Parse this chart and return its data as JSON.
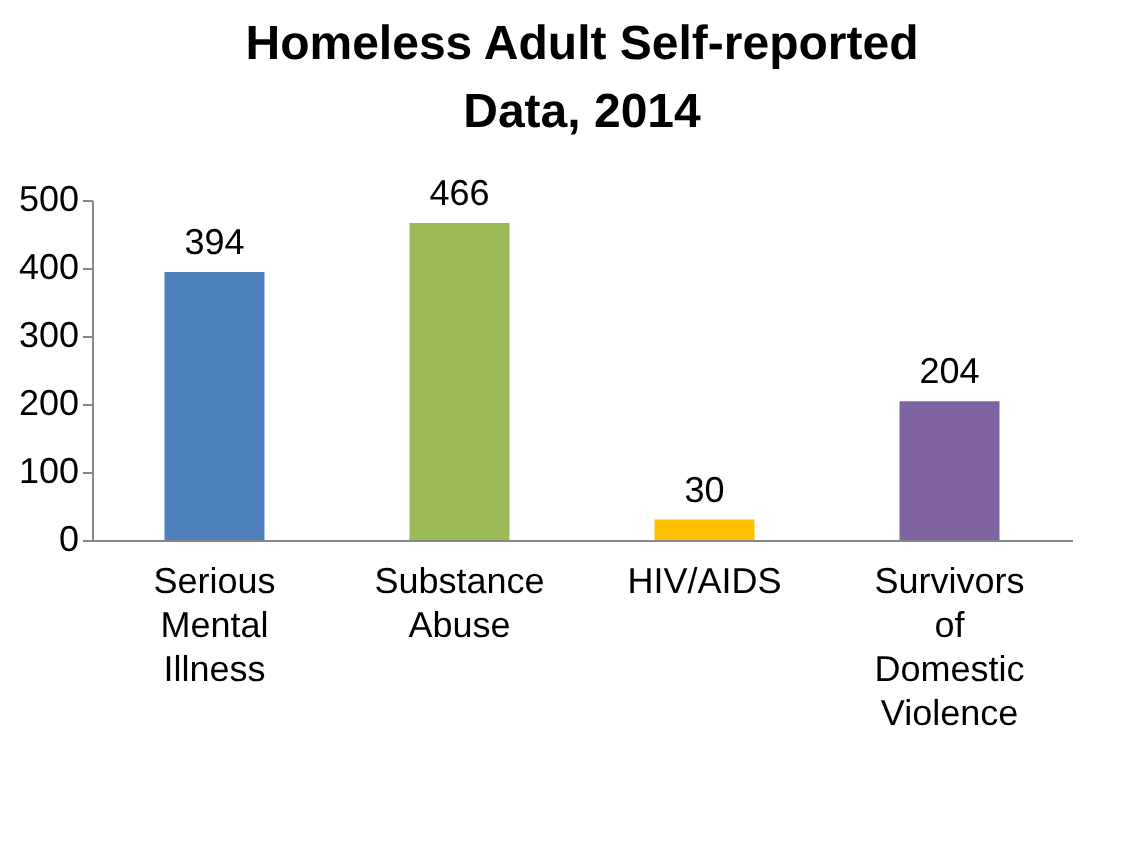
{
  "chart_data": {
    "type": "bar",
    "title": "Homeless Adult Self-reported Data, 2014",
    "categories": [
      "Serious Mental Illness",
      "Substance Abuse",
      "HIV/AIDS",
      "Survivors of Domestic Violence"
    ],
    "values": [
      394,
      466,
      30,
      204
    ],
    "colors": [
      "#4f81bd",
      "#9bbb59",
      "#ffc000",
      "#8064a2"
    ],
    "ylim": [
      0,
      500
    ],
    "yticks": [
      0,
      100,
      200,
      300,
      400,
      500
    ],
    "grid": false,
    "data_labels": true
  }
}
